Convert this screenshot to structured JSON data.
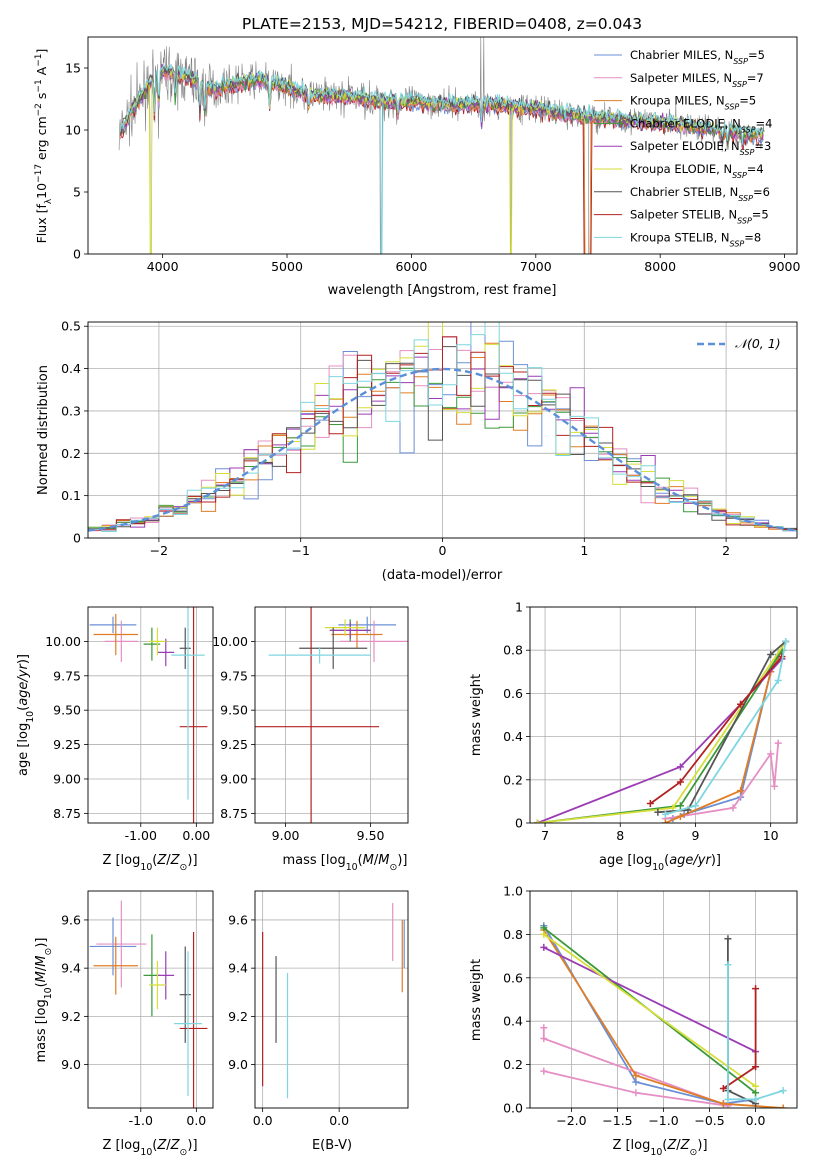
{
  "figure": {
    "title": "PLATE=2153, MJD=54212, FIBERID=0408, z=0.043"
  },
  "colors": {
    "Chabrier MILES": "#6b8fd6",
    "Salpeter MILES": "#e58fc4",
    "Kroupa MILES": "#e07d25",
    "Chabrier ELODIE": "#3a9a3a",
    "Salpeter ELODIE": "#9b3bb5",
    "Kroupa ELODIE": "#d6de3a",
    "Chabrier STELIB": "#555555",
    "Salpeter STELIB": "#b22222",
    "Kroupa STELIB": "#7fd6e0",
    "normal": "#5b8fd9"
  },
  "chart_data": [
    {
      "id": "spectrum",
      "type": "line",
      "xlabel": "wavelength [Angstrom, rest frame]",
      "ylabel": "Flux [f_λ10^-17 erg cm^-2 s^-1 A^-1]",
      "xlim": [
        3400,
        9100
      ],
      "ylim": [
        0,
        17.5
      ],
      "xticks": [
        4000,
        5000,
        6000,
        7000,
        8000,
        9000
      ],
      "yticks": [
        0,
        5,
        10,
        15
      ],
      "legend": [
        {
          "model": "Chabrier MILES",
          "nssp": "5"
        },
        {
          "model": "Salpeter MILES",
          "nssp": "7"
        },
        {
          "model": "Kroupa MILES",
          "nssp": "5"
        },
        {
          "model": "Chabrier ELODIE",
          "nssp": "4"
        },
        {
          "model": "Salpeter ELODIE",
          "nssp": "3"
        },
        {
          "model": "Kroupa ELODIE",
          "nssp": "4"
        },
        {
          "model": "Chabrier STELIB",
          "nssp": "6"
        },
        {
          "model": "Salpeter STELIB",
          "nssp": "5"
        },
        {
          "model": "Kroupa STELIB",
          "nssp": "8"
        }
      ],
      "continuum": [
        [
          3650,
          9.5
        ],
        [
          3750,
          11.5
        ],
        [
          3900,
          13.8
        ],
        [
          4000,
          14.8
        ],
        [
          4200,
          14.3
        ],
        [
          4400,
          13.3
        ],
        [
          4600,
          13.8
        ],
        [
          4800,
          14.0
        ],
        [
          5000,
          13.5
        ],
        [
          5200,
          12.8
        ],
        [
          5500,
          12.7
        ],
        [
          5800,
          12.3
        ],
        [
          6000,
          12.3
        ],
        [
          6300,
          12.0
        ],
        [
          6600,
          12.1
        ],
        [
          7000,
          11.7
        ],
        [
          7300,
          11.2
        ],
        [
          7600,
          10.9
        ],
        [
          8000,
          10.6
        ],
        [
          8300,
          10.2
        ],
        [
          8500,
          10.0
        ],
        [
          8800,
          9.5
        ]
      ],
      "data_gaps": [
        [
          3900,
          3910
        ],
        [
          5750,
          5765
        ],
        [
          6795,
          6805
        ],
        [
          7390,
          7425
        ]
      ]
    },
    {
      "id": "residuals",
      "type": "line",
      "xlabel": "(data-model)/error",
      "ylabel": "Normed distribution",
      "xlim": [
        -2.5,
        2.5
      ],
      "ylim": [
        0,
        0.51
      ],
      "xticks": [
        -2,
        -1,
        0,
        1,
        2
      ],
      "yticks": [
        0.0,
        0.1,
        0.2,
        0.3,
        0.4,
        0.5
      ],
      "legend_label": "𝒩(0, 1)",
      "bin_width": 0.1,
      "bin_start": -2.5
    },
    {
      "id": "age_vs_Z",
      "type": "scatter",
      "xlabel": "Z [log10(Z/Z⊙)]",
      "ylabel": "age  [log10(age/yr)]",
      "xlim": [
        -1.95,
        0.3
      ],
      "ylim": [
        8.68,
        10.25
      ],
      "xticks": [
        -1,
        0
      ],
      "yticks": [
        8.75,
        9.0,
        9.25,
        9.5,
        9.75,
        10.0
      ],
      "points": [
        {
          "model": "Chabrier MILES",
          "x": -1.5,
          "y": 10.12,
          "xerr": 0.42,
          "yerr": 0.06
        },
        {
          "model": "Salpeter MILES",
          "x": -1.35,
          "y": 10.0,
          "xerr": 0.3,
          "yerr": 0.15
        },
        {
          "model": "Kroupa MILES",
          "x": -1.45,
          "y": 10.05,
          "xerr": 0.4,
          "yerr": 0.15
        },
        {
          "model": "Chabrier ELODIE",
          "x": -0.8,
          "y": 9.98,
          "xerr": 0.15,
          "yerr": 0.12
        },
        {
          "model": "Salpeter ELODIE",
          "x": -0.55,
          "y": 9.92,
          "xerr": 0.15,
          "yerr": 0.1
        },
        {
          "model": "Kroupa ELODIE",
          "x": -0.7,
          "y": 10.0,
          "xerr": 0.15,
          "yerr": 0.1
        },
        {
          "model": "Chabrier STELIB",
          "x": -0.2,
          "y": 9.95,
          "xerr": 0.1,
          "yerr": 0.15
        },
        {
          "model": "Salpeter STELIB",
          "x": -0.05,
          "y": 9.38,
          "xerr": 0.25,
          "yerr": 0.88
        },
        {
          "model": "Kroupa STELIB",
          "x": -0.15,
          "y": 9.9,
          "xerr": 0.3,
          "yerr": 1.05
        }
      ]
    },
    {
      "id": "age_vs_mass",
      "type": "scatter",
      "xlabel": "mass [log10(M/M⊙)]",
      "ylabel": "",
      "xlim": [
        8.82,
        9.72
      ],
      "ylim": [
        8.68,
        10.25
      ],
      "xticks": [
        9.0,
        9.5
      ],
      "yticks": [
        8.75,
        9.0,
        9.25,
        9.5,
        9.75,
        10.0
      ],
      "points": [
        {
          "model": "Chabrier MILES",
          "x": 9.48,
          "y": 10.12,
          "xerr": 0.17,
          "yerr": 0.06
        },
        {
          "model": "Salpeter MILES",
          "x": 9.52,
          "y": 10.0,
          "xerr": 0.2,
          "yerr": 0.15
        },
        {
          "model": "Kroupa MILES",
          "x": 9.42,
          "y": 10.05,
          "xerr": 0.15,
          "yerr": 0.1
        },
        {
          "model": "Chabrier ELODIE",
          "x": 9.38,
          "y": 10.08,
          "xerr": 0.12,
          "yerr": 0.08
        },
        {
          "model": "Salpeter ELODIE",
          "x": 9.38,
          "y": 10.08,
          "xerr": 0.12,
          "yerr": 0.06
        },
        {
          "model": "Kroupa ELODIE",
          "x": 9.35,
          "y": 10.1,
          "xerr": 0.12,
          "yerr": 0.06
        },
        {
          "model": "Chabrier STELIB",
          "x": 9.28,
          "y": 9.95,
          "xerr": 0.2,
          "yerr": 0.15
        },
        {
          "model": "Salpeter STELIB",
          "x": 9.15,
          "y": 9.38,
          "xerr": 0.4,
          "yerr": 0.88
        },
        {
          "model": "Kroupa STELIB",
          "x": 9.2,
          "y": 9.9,
          "xerr": 0.3,
          "yerr": 0.06
        }
      ]
    },
    {
      "id": "mass_weight_vs_age",
      "type": "line",
      "xlabel": "age  [log10(age/yr)]",
      "ylabel": "mass weight",
      "xlim": [
        6.8,
        10.35
      ],
      "ylim": [
        0,
        1.0
      ],
      "xticks": [
        7,
        8,
        9,
        10
      ],
      "yticks": [
        0.0,
        0.2,
        0.4,
        0.6,
        0.8,
        1.0
      ],
      "series": [
        {
          "model": "Chabrier MILES",
          "points": [
            [
              8.7,
              0.02
            ],
            [
              8.85,
              0.04
            ],
            [
              9.6,
              0.12
            ],
            [
              10.0,
              0.7
            ],
            [
              10.1,
              0.78
            ]
          ]
        },
        {
          "model": "Salpeter MILES",
          "points": [
            [
              8.6,
              0.02
            ],
            [
              9.5,
              0.07
            ],
            [
              10.0,
              0.32
            ],
            [
              10.05,
              0.17
            ],
            [
              10.1,
              0.37
            ]
          ]
        },
        {
          "model": "Kroupa MILES",
          "points": [
            [
              8.6,
              0.0
            ],
            [
              8.8,
              0.03
            ],
            [
              9.6,
              0.15
            ],
            [
              10.0,
              0.7
            ],
            [
              10.15,
              0.8
            ]
          ]
        },
        {
          "model": "Chabrier ELODIE",
          "points": [
            [
              6.9,
              0.0
            ],
            [
              8.8,
              0.08
            ],
            [
              10.15,
              0.8
            ]
          ]
        },
        {
          "model": "Salpeter ELODIE",
          "points": [
            [
              6.9,
              0.0
            ],
            [
              8.8,
              0.26
            ],
            [
              9.6,
              0.55
            ],
            [
              10.15,
              0.76
            ]
          ]
        },
        {
          "model": "Kroupa ELODIE",
          "points": [
            [
              6.9,
              0.0
            ],
            [
              8.7,
              0.07
            ],
            [
              10.2,
              0.84
            ]
          ]
        },
        {
          "model": "Chabrier STELIB",
          "points": [
            [
              8.5,
              0.05
            ],
            [
              8.9,
              0.06
            ],
            [
              10.0,
              0.78
            ],
            [
              10.2,
              0.84
            ]
          ]
        },
        {
          "model": "Salpeter STELIB",
          "points": [
            [
              8.4,
              0.09
            ],
            [
              8.8,
              0.19
            ],
            [
              9.6,
              0.55
            ],
            [
              10.15,
              0.77
            ]
          ]
        },
        {
          "model": "Kroupa STELIB",
          "points": [
            [
              8.6,
              0.04
            ],
            [
              9.0,
              0.08
            ],
            [
              10.1,
              0.66
            ],
            [
              10.2,
              0.84
            ]
          ]
        }
      ]
    },
    {
      "id": "mass_vs_Z",
      "type": "scatter",
      "xlabel": "Z [log10(Z/Z⊙)]",
      "ylabel": "mass [log10(M/M⊙)]",
      "xlim": [
        -1.95,
        0.3
      ],
      "ylim": [
        8.82,
        9.72
      ],
      "xticks": [
        -1,
        0
      ],
      "yticks": [
        9.0,
        9.2,
        9.4,
        9.6
      ],
      "points": [
        {
          "model": "Chabrier MILES",
          "x": -1.5,
          "y": 9.49,
          "xerr": 0.42,
          "yerr": 0.12
        },
        {
          "model": "Salpeter MILES",
          "x": -1.35,
          "y": 9.5,
          "xerr": 0.45,
          "yerr": 0.18
        },
        {
          "model": "Kroupa MILES",
          "x": -1.45,
          "y": 9.41,
          "xerr": 0.4,
          "yerr": 0.12
        },
        {
          "model": "Chabrier ELODIE",
          "x": -0.8,
          "y": 9.37,
          "xerr": 0.15,
          "yerr": 0.17
        },
        {
          "model": "Salpeter ELODIE",
          "x": -0.55,
          "y": 9.37,
          "xerr": 0.15,
          "yerr": 0.1
        },
        {
          "model": "Kroupa ELODIE",
          "x": -0.7,
          "y": 9.33,
          "xerr": 0.15,
          "yerr": 0.1
        },
        {
          "model": "Chabrier STELIB",
          "x": -0.2,
          "y": 9.29,
          "xerr": 0.1,
          "yerr": 0.2
        },
        {
          "model": "Salpeter STELIB",
          "x": -0.05,
          "y": 9.15,
          "xerr": 0.25,
          "yerr": 0.4
        },
        {
          "model": "Kroupa STELIB",
          "x": -0.15,
          "y": 9.17,
          "xerr": 0.25,
          "yerr": 0.3
        }
      ]
    },
    {
      "id": "mass_vs_ebv",
      "type": "scatter",
      "xlabel": "E(B-V)",
      "ylabel": "",
      "xlim": [
        -0.002,
        0.038
      ],
      "ylim": [
        8.82,
        9.72
      ],
      "xticks": [
        0.0,
        0.02
      ],
      "yticks": [
        9.0,
        9.2,
        9.4,
        9.6
      ],
      "points": [
        {
          "model": "Salpeter MILES",
          "x": 0.034,
          "y": 9.55,
          "xerr": 0.0,
          "yerr": 0.12
        },
        {
          "model": "Kroupa MILES",
          "x": 0.0365,
          "y": 9.45,
          "xerr": 0.0,
          "yerr": 0.15
        },
        {
          "model": "Chabrier MILES",
          "x": 0.037,
          "y": 9.5,
          "xerr": 0.0,
          "yerr": 0.1
        },
        {
          "model": "Salpeter STELIB",
          "x": 0.0,
          "y": 9.23,
          "xerr": 0.0,
          "yerr": 0.32
        },
        {
          "model": "Chabrier STELIB",
          "x": 0.0035,
          "y": 9.27,
          "xerr": 0.0,
          "yerr": 0.18
        },
        {
          "model": "Kroupa STELIB",
          "x": 0.0065,
          "y": 9.12,
          "xerr": 0.0,
          "yerr": 0.26
        }
      ]
    },
    {
      "id": "mass_weight_vs_Z",
      "type": "line",
      "xlabel": "Z [log10(Z/Z⊙)]",
      "ylabel": "mass weight",
      "xlim": [
        -2.45,
        0.45
      ],
      "ylim": [
        0,
        1.0
      ],
      "xticks": [
        -2.0,
        -1.5,
        -1.0,
        -0.5,
        0.0
      ],
      "yticks": [
        0.0,
        0.2,
        0.4,
        0.6,
        0.8,
        1.0
      ],
      "series": [
        {
          "model": "Chabrier MILES",
          "points": [
            [
              -2.3,
              0.84
            ],
            [
              -1.3,
              0.12
            ],
            [
              -0.35,
              0.02
            ],
            [
              0.0,
              0.04
            ]
          ]
        },
        {
          "model": "Salpeter MILES",
          "points": [
            [
              -2.3,
              0.17
            ],
            [
              -1.3,
              0.07
            ],
            [
              -0.3,
              0.01
            ],
            [
              -2.3,
              0.32
            ],
            [
              -2.3,
              0.37
            ]
          ]
        },
        {
          "model": "Kroupa MILES",
          "points": [
            [
              -2.3,
              0.82
            ],
            [
              -1.3,
              0.15
            ],
            [
              -0.35,
              0.02
            ],
            [
              0.3,
              0.0
            ]
          ]
        },
        {
          "model": "Chabrier ELODIE",
          "points": [
            [
              -2.3,
              0.83
            ],
            [
              0.0,
              0.07
            ]
          ]
        },
        {
          "model": "Salpeter ELODIE",
          "points": [
            [
              -2.3,
              0.74
            ],
            [
              0.0,
              0.26
            ]
          ]
        },
        {
          "model": "Kroupa ELODIE",
          "points": [
            [
              -2.3,
              0.8
            ],
            [
              0.0,
              0.1
            ]
          ]
        },
        {
          "model": "Chabrier STELIB",
          "points": [
            [
              -0.3,
              0.78
            ],
            [
              -0.3,
              0.08
            ],
            [
              0.0,
              0.02
            ]
          ]
        },
        {
          "model": "Salpeter STELIB",
          "points": [
            [
              -0.35,
              0.09
            ],
            [
              0.0,
              0.19
            ],
            [
              0.0,
              0.55
            ]
          ]
        },
        {
          "model": "Kroupa STELIB",
          "points": [
            [
              -0.3,
              0.66
            ],
            [
              -0.3,
              0.04
            ],
            [
              0.0,
              0.04
            ],
            [
              0.3,
              0.08
            ]
          ]
        }
      ]
    }
  ]
}
